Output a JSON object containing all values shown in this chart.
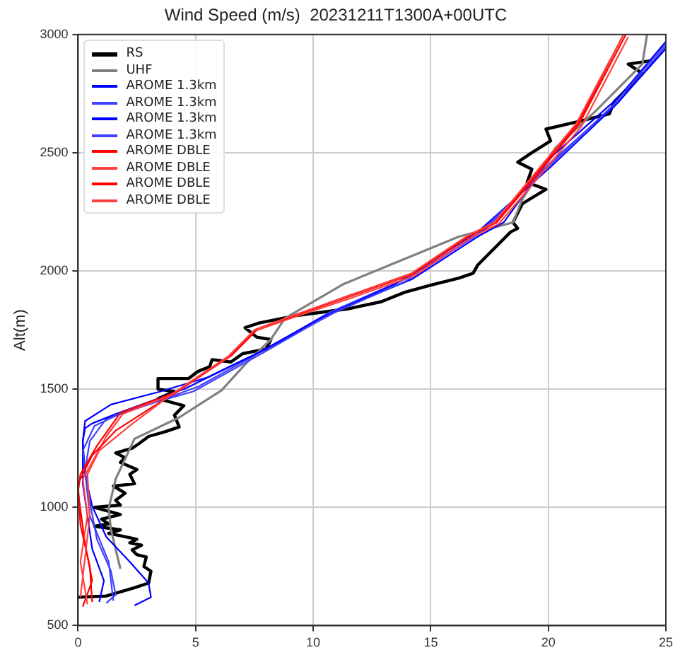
{
  "chart_data": {
    "type": "line",
    "title": "Wind Speed (m/s)  20231211T1300A+00UTC",
    "ylabel": "Alt(m)",
    "xlim": [
      0,
      25
    ],
    "xticks": [
      0,
      5,
      10,
      15,
      20,
      25
    ],
    "ylim": [
      500,
      3000
    ],
    "yticks": [
      500,
      1000,
      1500,
      2000,
      2500,
      3000
    ],
    "grid": true,
    "legend": "top left",
    "line_style": "solid",
    "series": [
      {
        "name": "RS",
        "color": "#000000",
        "x": [
          0,
          1.2,
          2.4,
          3.0,
          3.1,
          2.8,
          2.9,
          2.5,
          2.3,
          2.7,
          2.2,
          2.5,
          1.8,
          1.3,
          1.8,
          0.7,
          1.3,
          1.0,
          1.8,
          0.7,
          1.8,
          1.6,
          2.0,
          1.5,
          2.4,
          2.2,
          2.5,
          1.8,
          2.0,
          1.6,
          2.3,
          2.6,
          3.0,
          3.7,
          4.3,
          4.1,
          4.5,
          3.4,
          4.1,
          3.4,
          3.4,
          4.7,
          5.1,
          5.6,
          5.7,
          6.5,
          7.0,
          8.0,
          8.2,
          7.6,
          7.1,
          7.7,
          9.2,
          11.5,
          12.9,
          13.9,
          15.0,
          16.2,
          16.8,
          17.0,
          17.4,
          18.0,
          18.4,
          18.7,
          18.5,
          18.9,
          19.9,
          19.1,
          19.3,
          18.7,
          19.3,
          20.1,
          19.9,
          21.4,
          22.6,
          22.8,
          23.4,
          24.0,
          23.4,
          24.4
        ],
        "values": [
          620,
          625,
          660,
          680,
          730,
          750,
          790,
          800,
          820,
          840,
          850,
          865,
          880,
          890,
          905,
          920,
          930,
          950,
          970,
          1000,
          1010,
          1030,
          1060,
          1090,
          1100,
          1140,
          1160,
          1190,
          1210,
          1230,
          1250,
          1270,
          1300,
          1320,
          1340,
          1390,
          1430,
          1460,
          1490,
          1500,
          1545,
          1545,
          1575,
          1595,
          1625,
          1615,
          1650,
          1670,
          1710,
          1720,
          1760,
          1780,
          1810,
          1840,
          1870,
          1910,
          1940,
          1970,
          1990,
          2025,
          2065,
          2125,
          2165,
          2180,
          2205,
          2285,
          2345,
          2375,
          2430,
          2460,
          2500,
          2550,
          2600,
          2635,
          2665,
          2715,
          2775,
          2835,
          2875,
          2890
        ]
      },
      {
        "name": "UHF",
        "color": "#808080",
        "x": [
          1.8,
          1.4,
          1.3,
          1.6,
          2.4,
          4.3,
          6.1,
          7.2,
          8.2,
          8.8,
          11.3,
          16.2,
          18.5,
          18.9,
          20.3,
          22.0,
          24.0,
          24.2
        ],
        "values": [
          740,
          905,
          995,
          1120,
          1290,
          1380,
          1495,
          1615,
          1710,
          1800,
          1945,
          2145,
          2205,
          2305,
          2520,
          2675,
          2875,
          3000
        ]
      },
      {
        "name": "AROME 1.3km",
        "color": "#0000ff",
        "x": [
          2.4,
          3.1,
          3.0,
          2.2,
          1.2,
          0.6,
          0.3,
          0.2,
          0.3,
          1.4,
          3.5,
          5.5,
          8.4,
          11.3,
          14.2,
          17.0,
          18.1,
          20.1,
          23.0,
          25.0
        ],
        "values": [
          585,
          620,
          680,
          770,
          875,
          1005,
          1140,
          1280,
          1365,
          1435,
          1490,
          1550,
          1690,
          1845,
          1965,
          2145,
          2205,
          2480,
          2735,
          2970
        ]
      },
      {
        "name": "AROME 1.3km",
        "color": "#4040ff",
        "x": [
          1.2,
          1.6,
          1.4,
          0.8,
          0.5,
          0.3,
          0.5,
          1.2,
          3.0,
          5.1,
          8.0,
          10.7,
          13.9,
          17.2,
          20.1,
          23.0,
          25.0
        ],
        "values": [
          595,
          630,
          730,
          865,
          1025,
          1160,
          1280,
          1375,
          1435,
          1510,
          1670,
          1825,
          1965,
          2165,
          2460,
          2715,
          2950
        ]
      },
      {
        "name": "AROME 1.3km",
        "color": "#0000ff",
        "x": [
          0.9,
          1.1,
          0.6,
          0.4,
          0.2,
          0.2,
          0.3,
          0.6,
          1.6,
          4.5,
          7.6,
          10.4,
          13.5,
          17.0,
          20.1,
          22.8,
          25.0
        ],
        "values": [
          600,
          690,
          825,
          965,
          1100,
          1280,
          1335,
          1355,
          1395,
          1500,
          1650,
          1805,
          1945,
          2165,
          2440,
          2695,
          2940
        ]
      },
      {
        "name": "AROME 1.3km",
        "color": "#4040ff",
        "x": [
          1.5,
          1.3,
          0.5,
          0.2,
          0.7,
          2.2,
          4.9,
          7.8,
          10.7,
          13.9,
          17.0,
          20.1,
          22.8,
          25.0
        ],
        "values": [
          605,
          770,
          965,
          1240,
          1345,
          1415,
          1490,
          1650,
          1815,
          1955,
          2155,
          2450,
          2705,
          2960
        ]
      },
      {
        "name": "AROME DBLE",
        "color": "#ff0000",
        "x": [
          0.2,
          0.6,
          0.3,
          0.0,
          0.1,
          0.8,
          1.8,
          4.1,
          6.5,
          7.6,
          9.2,
          11.5,
          14.2,
          16.6,
          17.8,
          19.3,
          21.3,
          23.3
        ],
        "values": [
          580,
          690,
          845,
          1065,
          1140,
          1260,
          1400,
          1485,
          1640,
          1750,
          1810,
          1890,
          1985,
          2145,
          2205,
          2380,
          2620,
          3000
        ]
      },
      {
        "name": "AROME DBLE",
        "color": "#ff4040",
        "x": [
          0.4,
          0.1,
          0.4,
          0.2,
          1.2,
          1.9,
          4.1,
          6.4,
          7.5,
          9.2,
          11.6,
          14.3,
          16.7,
          17.9,
          19.4,
          21.4,
          23.4
        ],
        "values": [
          590,
          770,
          965,
          1120,
          1300,
          1395,
          1480,
          1635,
          1745,
          1805,
          1885,
          1980,
          2140,
          2200,
          2375,
          2610,
          2990
        ]
      },
      {
        "name": "AROME DBLE",
        "color": "#ff0000",
        "x": [
          0.6,
          0.5,
          0.1,
          0.0,
          0.6,
          1.6,
          4.2,
          6.5,
          7.6,
          9.3,
          11.5,
          14.2,
          16.6,
          17.8,
          19.3,
          21.3,
          23.2
        ],
        "values": [
          600,
          750,
          925,
          1100,
          1220,
          1325,
          1490,
          1645,
          1755,
          1815,
          1895,
          1990,
          2150,
          2210,
          2390,
          2630,
          3000
        ]
      },
      {
        "name": "AROME DBLE",
        "color": "#ff4040",
        "x": [
          0.1,
          0.3,
          0.5,
          0.4,
          0.9,
          2.2,
          4.0,
          6.4,
          7.5,
          9.1,
          11.4,
          14.1,
          16.5,
          17.7,
          19.2,
          21.2,
          23.2
        ],
        "values": [
          620,
          790,
          965,
          1140,
          1240,
          1345,
          1480,
          1640,
          1750,
          1810,
          1890,
          1985,
          2145,
          2205,
          2385,
          2625,
          3000
        ]
      }
    ]
  }
}
